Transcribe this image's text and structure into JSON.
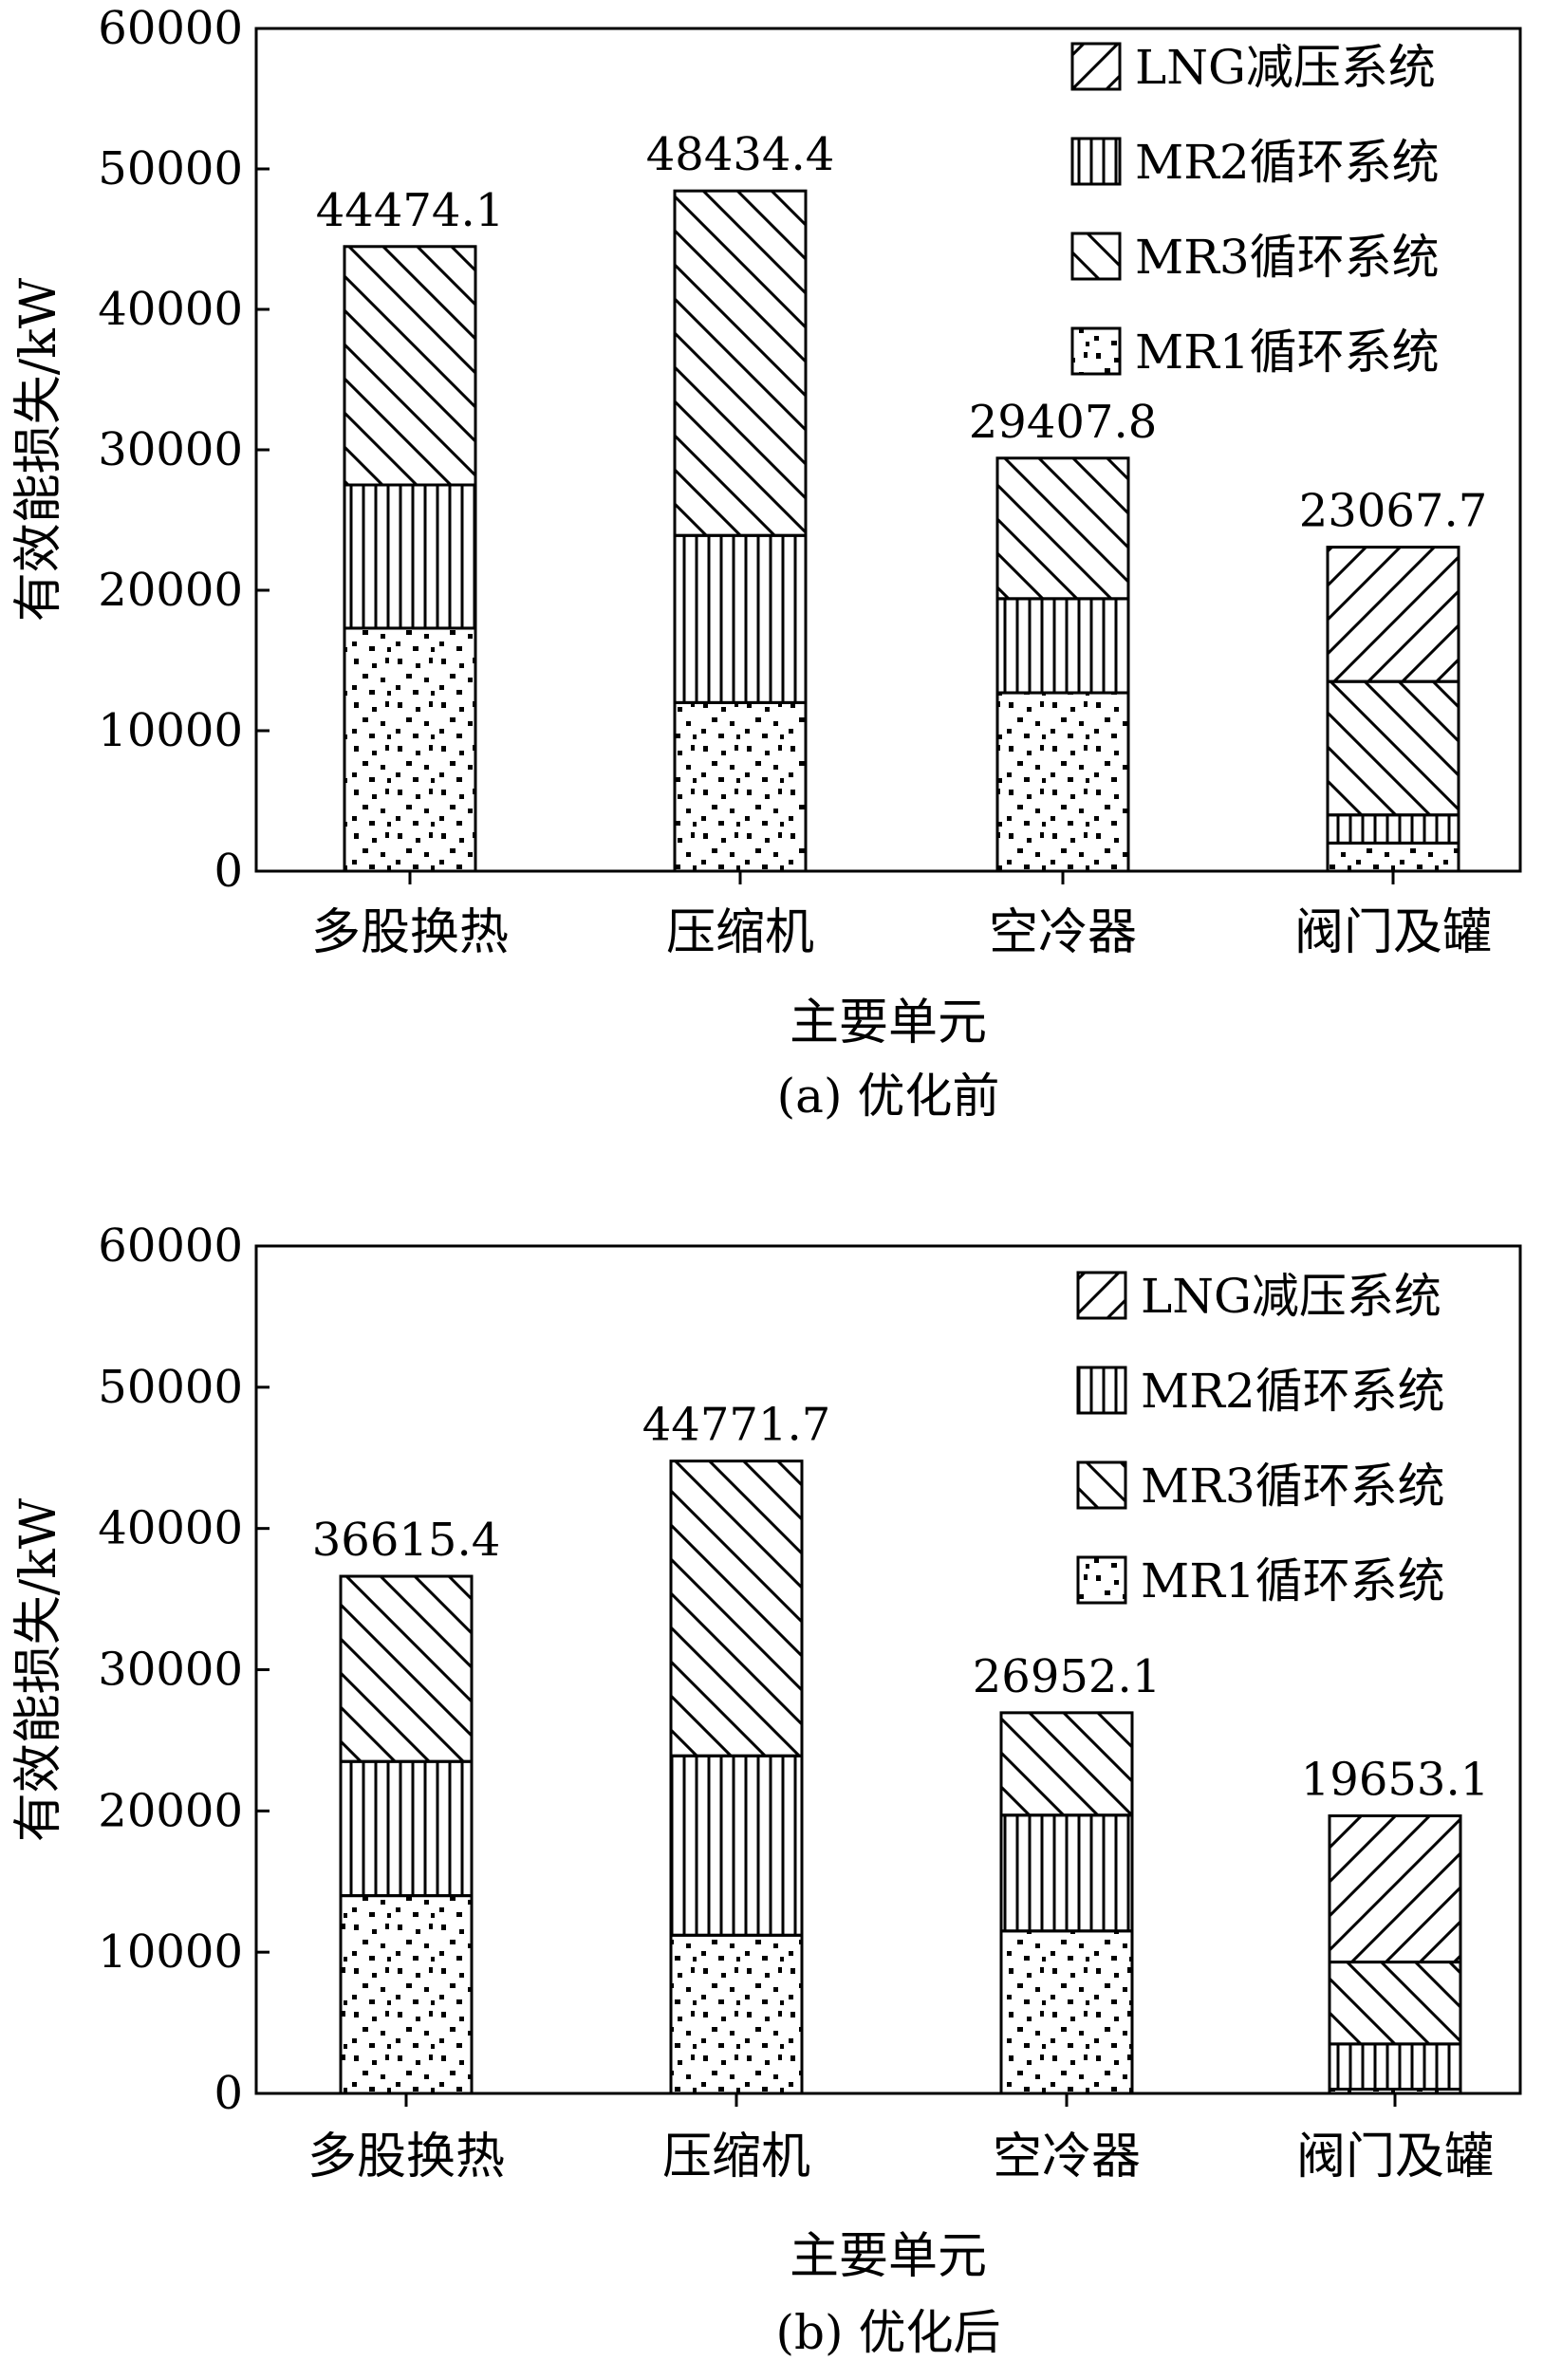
{
  "chart_data": [
    {
      "type": "bar",
      "stacked": true,
      "caption": "(a) 优化前",
      "xlabel": "主要单元",
      "ylabel": "有效能损失/kW",
      "ylim": [
        0,
        60000
      ],
      "yticks": [
        0,
        10000,
        20000,
        30000,
        40000,
        50000,
        60000
      ],
      "categories": [
        "多股换热",
        "压缩机",
        "空冷器",
        "阀门及罐"
      ],
      "totals": [
        "44474.1",
        "48434.4",
        "29407.8",
        "23067.7"
      ],
      "legend": [
        "LNG减压系统",
        "MR2循环系统",
        "MR3循环系统",
        "MR1循环系统"
      ],
      "legend_position": "top-right",
      "series": [
        {
          "name": "MR1循环系统",
          "pattern": "dots",
          "values": [
            17300,
            12000,
            12700,
            2000
          ]
        },
        {
          "name": "MR2循环系统",
          "pattern": "vertical",
          "values": [
            10200,
            11900,
            6700,
            2000
          ]
        },
        {
          "name": "MR3循环系统",
          "pattern": "backslash",
          "values": [
            16974.1,
            24534.4,
            10007.8,
            9500
          ]
        },
        {
          "name": "LNG减压系统",
          "pattern": "slash",
          "values": [
            0,
            0,
            0,
            9567.7
          ]
        }
      ]
    },
    {
      "type": "bar",
      "stacked": true,
      "caption": "(b) 优化后",
      "xlabel": "主要单元",
      "ylabel": "有效能损失/kW",
      "ylim": [
        0,
        60000
      ],
      "yticks": [
        0,
        10000,
        20000,
        30000,
        40000,
        50000,
        60000
      ],
      "categories": [
        "多股换热",
        "压缩机",
        "空冷器",
        "阀门及罐"
      ],
      "totals": [
        "36615.4",
        "44771.7",
        "26952.1",
        "19653.1"
      ],
      "legend": [
        "LNG减压系统",
        "MR2循环系统",
        "MR3循环系统",
        "MR1循环系统"
      ],
      "legend_position": "top-right",
      "series": [
        {
          "name": "MR1循环系统",
          "pattern": "dots",
          "values": [
            14000,
            11200,
            11500,
            300
          ]
        },
        {
          "name": "MR2循环系统",
          "pattern": "vertical",
          "values": [
            9500,
            12700,
            8200,
            3200
          ]
        },
        {
          "name": "MR3循环系统",
          "pattern": "backslash",
          "values": [
            13115.4,
            20871.7,
            7252.1,
            5800
          ]
        },
        {
          "name": "LNG减压系统",
          "pattern": "slash",
          "values": [
            0,
            0,
            0,
            10353.1
          ]
        }
      ]
    }
  ]
}
